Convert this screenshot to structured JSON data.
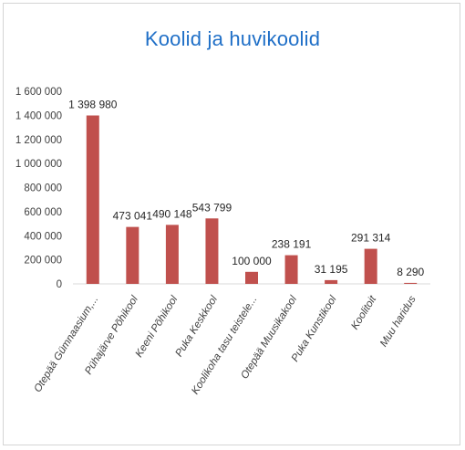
{
  "chart_data": {
    "type": "bar",
    "title": "Koolid ja huvikoolid",
    "xlabel": "",
    "ylabel": "",
    "categories": [
      "Otepää Gümnaasium,...",
      "Pühajärve Põhikool",
      "Keeni Põhikool",
      "Puka Keskkool",
      "Koolikoha tasu teistele...",
      "Otepää Muusikakool",
      "Puka Kunstikool",
      "Koolitoit",
      "Muu haridus"
    ],
    "values": [
      1398980,
      473041,
      490148,
      543799,
      100000,
      238191,
      31195,
      291314,
      8290
    ],
    "value_labels": [
      "1 398 980",
      "473 041",
      "490 148",
      "543 799",
      "100 000",
      "238 191",
      "31 195",
      "291 314",
      "8 290"
    ],
    "ylim": [
      0,
      1600000
    ],
    "yticks": [
      0,
      200000,
      400000,
      600000,
      800000,
      1000000,
      1200000,
      1400000,
      1600000
    ],
    "ytick_labels": [
      "0",
      "200 000",
      "400 000",
      "600 000",
      "800 000",
      "1 000 000",
      "1 200 000",
      "1 400 000",
      "1 600 000"
    ],
    "grid": false,
    "legend": "none",
    "colors": {
      "bar": "#c0504d",
      "title": "#1f6fc7"
    }
  }
}
